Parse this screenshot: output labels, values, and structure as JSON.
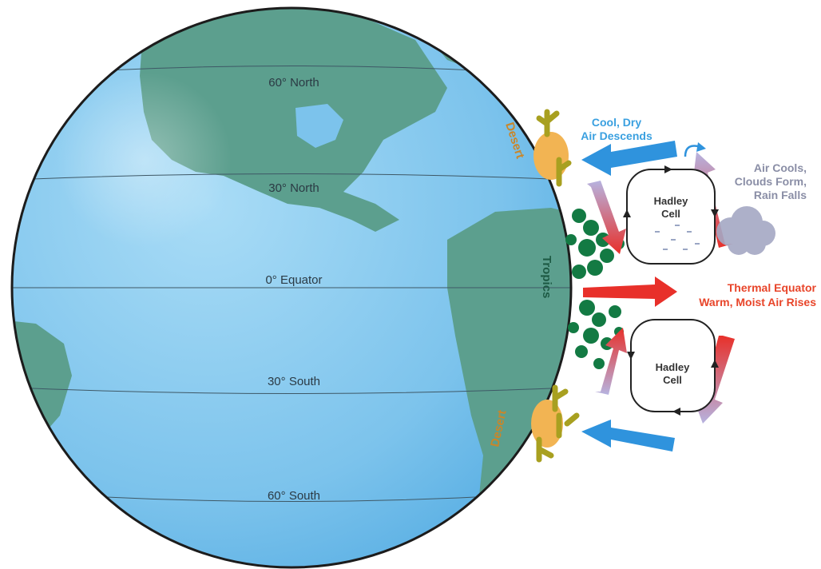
{
  "latitudes": {
    "n60": "60° North",
    "n30": "30° North",
    "eq": "0° Equator",
    "s30": "30° South",
    "s60": "60° South"
  },
  "zones": {
    "desert_north": "Desert",
    "desert_south": "Desert",
    "tropics": "Tropics"
  },
  "labels": {
    "cool_dry_1": "Cool, Dry",
    "cool_dry_2": "Air Descends",
    "air_cools_1": "Air Cools,",
    "air_cools_2": "Clouds Form,",
    "air_cools_3": "Rain Falls",
    "thermal_1": "Thermal Equator",
    "thermal_2": "Warm, Moist Air Rises"
  },
  "cells": {
    "north_1": "Hadley",
    "north_2": "Cell",
    "south_1": "Hadley",
    "south_2": "Cell"
  },
  "colors": {
    "ocean": "#7cc3ec",
    "land": "#5c9f8e",
    "forest": "#137a43",
    "desert": "#f2b453",
    "cactus": "#a8a020",
    "cool_arrow": "#2f93dd",
    "warm_arrow": "#e8302a",
    "cloud": "#a5a8c4"
  }
}
